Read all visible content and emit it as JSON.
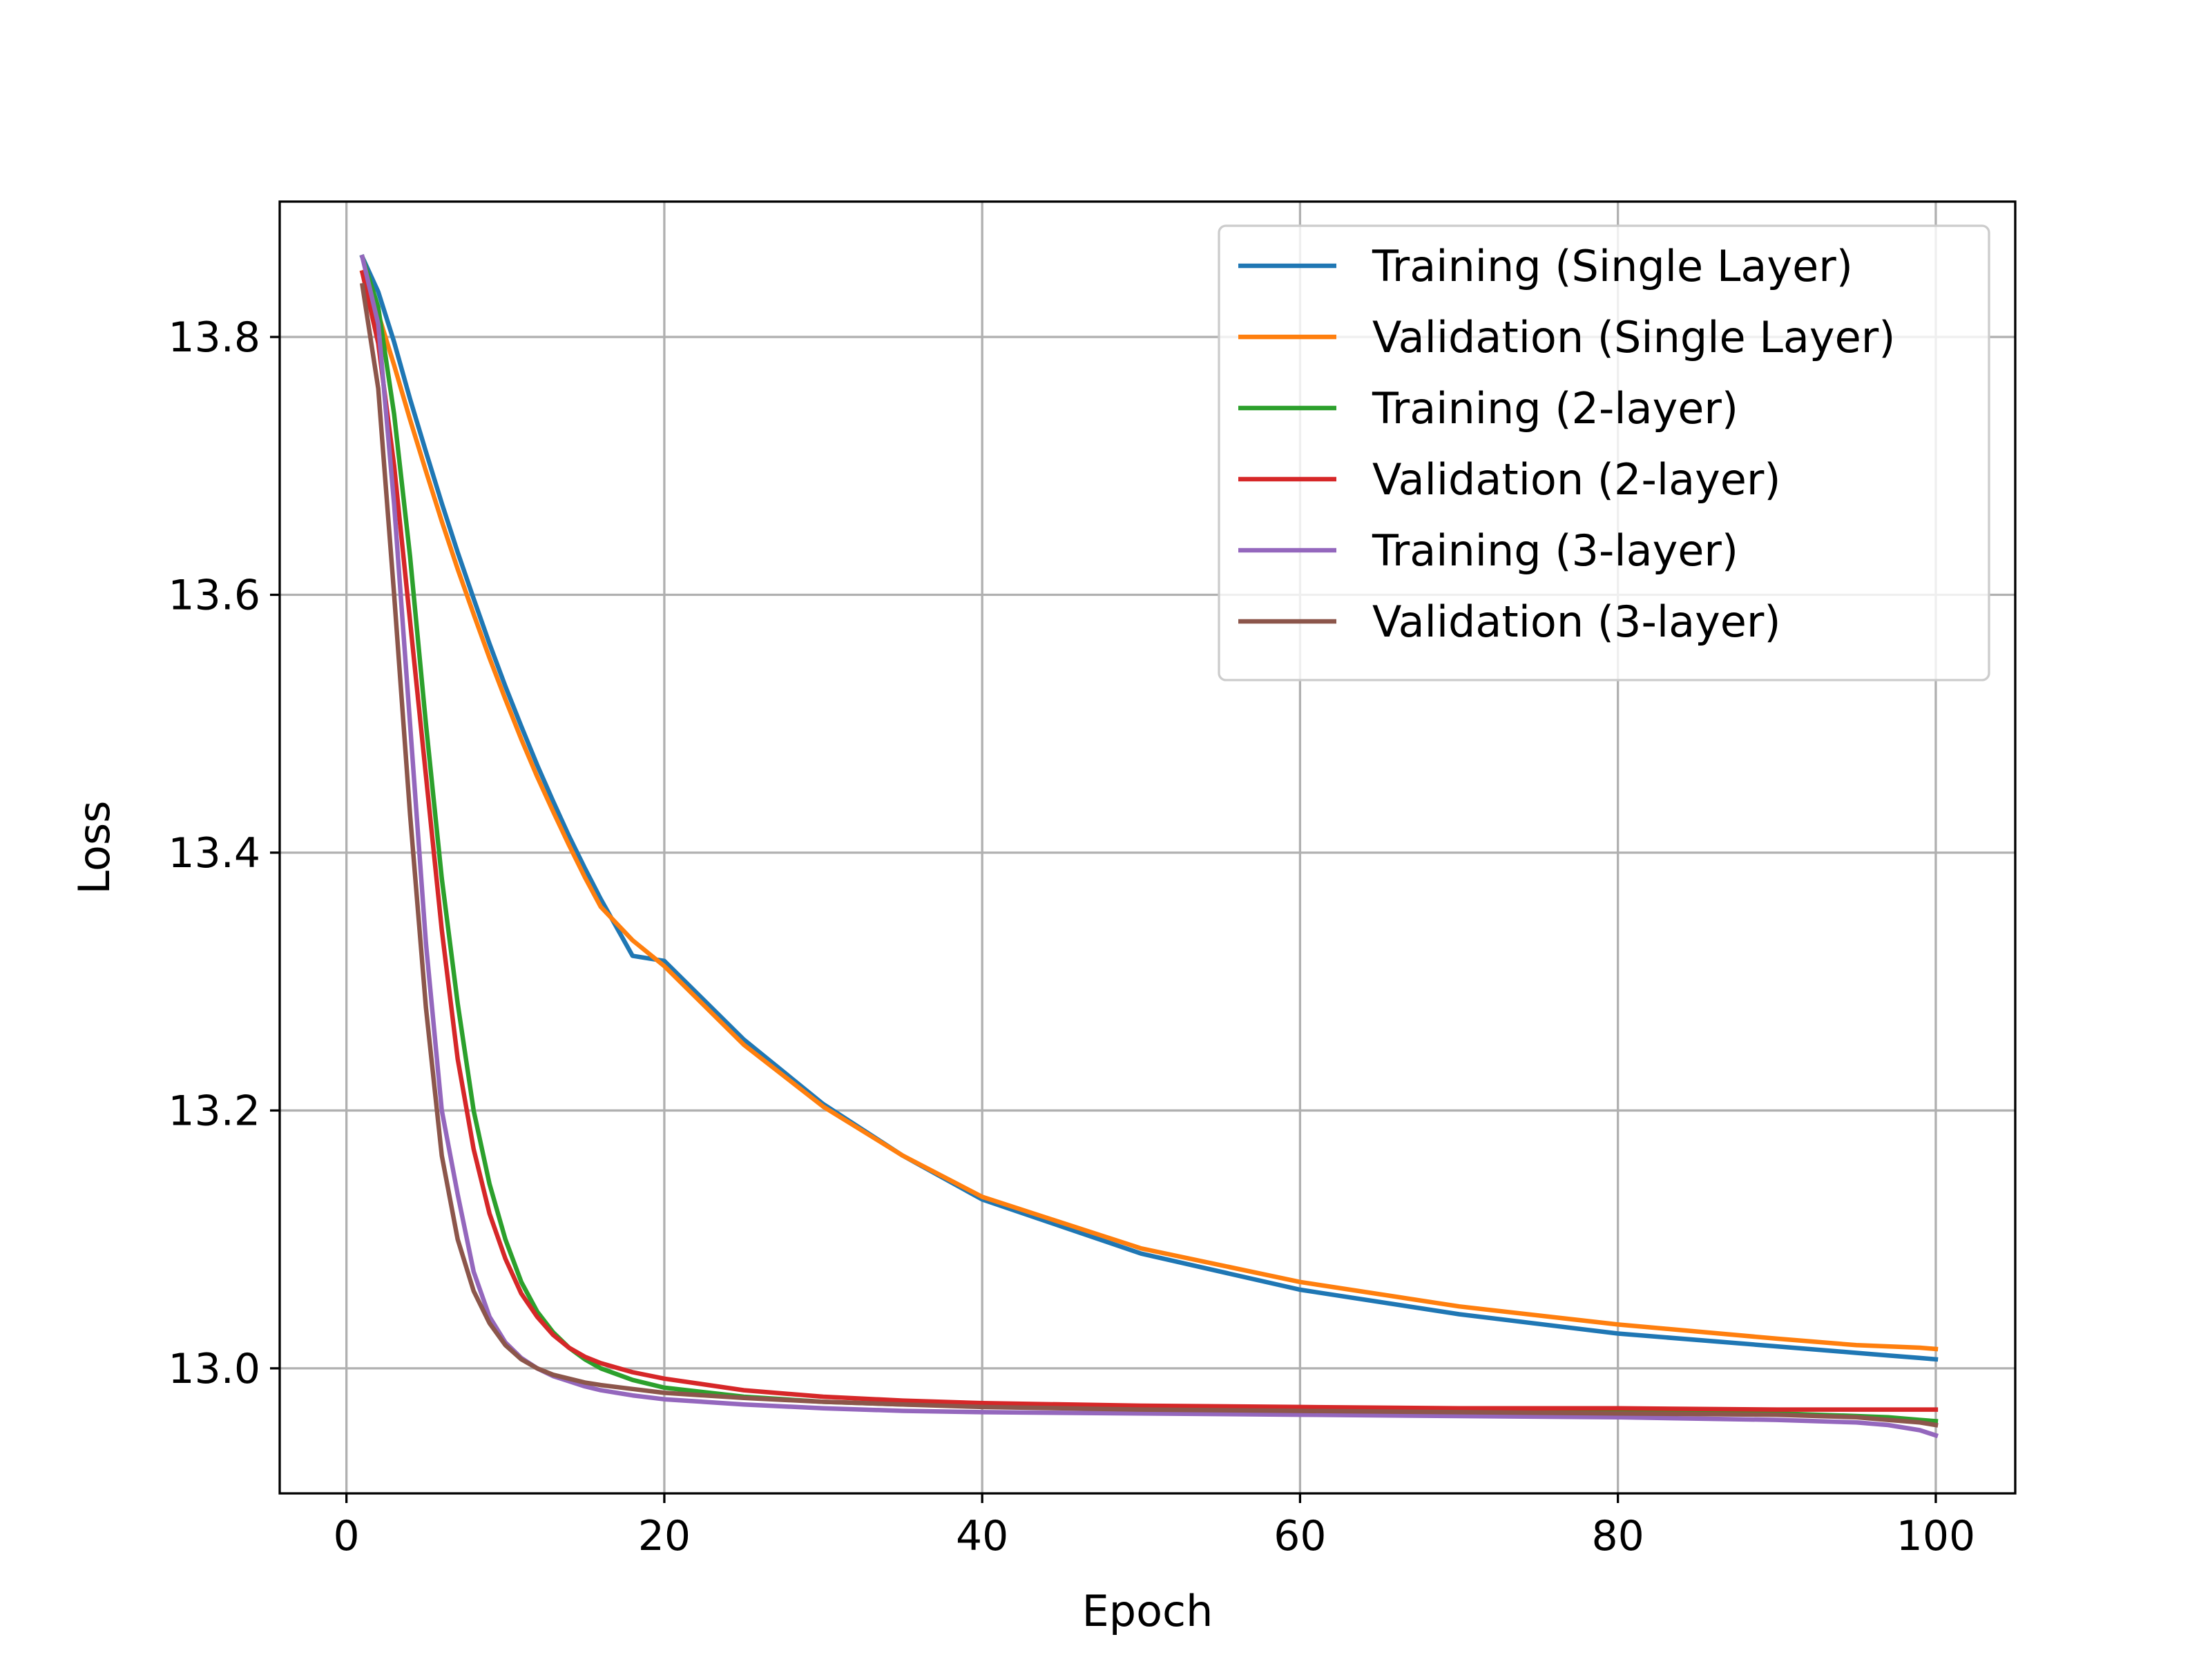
{
  "chart_data": {
    "type": "line",
    "xlabel": "Epoch",
    "ylabel": "Loss",
    "xlim": [
      -4.2,
      105
    ],
    "ylim": [
      12.903,
      13.905
    ],
    "xticks": [
      0,
      20,
      40,
      60,
      80,
      100
    ],
    "yticks": [
      13.0,
      13.2,
      13.4,
      13.6,
      13.8
    ],
    "grid": true,
    "legend_position": "top-right",
    "x": [
      1,
      2,
      3,
      4,
      5,
      6,
      7,
      8,
      9,
      10,
      11,
      12,
      13,
      14,
      15,
      16,
      18,
      20,
      25,
      30,
      35,
      40,
      50,
      60,
      70,
      80,
      90,
      95,
      97,
      99,
      100
    ],
    "series": [
      {
        "name": "Training (Single Layer)",
        "color": "#1f77b4",
        "values": [
          13.862,
          13.835,
          13.796,
          13.752,
          13.711,
          13.671,
          13.633,
          13.597,
          13.562,
          13.529,
          13.498,
          13.468,
          13.44,
          13.413,
          13.388,
          13.364,
          13.32,
          13.316,
          13.255,
          13.205,
          13.165,
          13.131,
          13.089,
          13.061,
          13.042,
          13.027,
          13.017,
          13.012,
          13.01,
          13.008,
          13.007
        ]
      },
      {
        "name": "Validation (Single Layer)",
        "color": "#ff7f0e",
        "values": [
          13.85,
          13.818,
          13.778,
          13.736,
          13.696,
          13.657,
          13.62,
          13.585,
          13.551,
          13.519,
          13.488,
          13.459,
          13.432,
          13.406,
          13.381,
          13.358,
          13.332,
          13.312,
          13.251,
          13.203,
          13.165,
          13.133,
          13.093,
          13.067,
          13.048,
          13.034,
          13.023,
          13.018,
          13.017,
          13.016,
          13.015
        ]
      },
      {
        "name": "Training (2-layer)",
        "color": "#2ca02c",
        "values": [
          13.862,
          13.823,
          13.74,
          13.63,
          13.5,
          13.38,
          13.283,
          13.2,
          13.143,
          13.1,
          13.067,
          13.044,
          13.028,
          13.016,
          13.007,
          13.0,
          12.991,
          12.985,
          12.978,
          12.974,
          12.972,
          12.971,
          12.97,
          12.969,
          12.968,
          12.967,
          12.965,
          12.963,
          12.962,
          12.96,
          12.959
        ]
      },
      {
        "name": "Validation (2-layer)",
        "color": "#d62728",
        "values": [
          13.85,
          13.795,
          13.7,
          13.58,
          13.46,
          13.34,
          13.24,
          13.17,
          13.12,
          13.085,
          13.058,
          13.04,
          13.026,
          13.016,
          13.009,
          13.004,
          12.997,
          12.992,
          12.983,
          12.978,
          12.975,
          12.973,
          12.971,
          12.97,
          12.969,
          12.969,
          12.968,
          12.968,
          12.968,
          12.968,
          12.968
        ]
      },
      {
        "name": "Training (3-layer)",
        "color": "#9467bd",
        "values": [
          13.862,
          13.81,
          13.67,
          13.5,
          13.33,
          13.2,
          13.135,
          13.075,
          13.04,
          13.02,
          13.008,
          13.0,
          12.994,
          12.99,
          12.986,
          12.983,
          12.979,
          12.976,
          12.972,
          12.969,
          12.967,
          12.966,
          12.965,
          12.964,
          12.963,
          12.962,
          12.96,
          12.958,
          12.956,
          12.952,
          12.948
        ]
      },
      {
        "name": "Validation (3-layer)",
        "color": "#8c564b",
        "values": [
          13.84,
          13.76,
          13.6,
          13.43,
          13.28,
          13.165,
          13.1,
          13.06,
          13.035,
          13.018,
          13.007,
          13.0,
          12.995,
          12.992,
          12.989,
          12.987,
          12.984,
          12.981,
          12.977,
          12.974,
          12.972,
          12.97,
          12.968,
          12.967,
          12.966,
          12.965,
          12.964,
          12.962,
          12.96,
          12.958,
          12.956
        ]
      }
    ]
  }
}
